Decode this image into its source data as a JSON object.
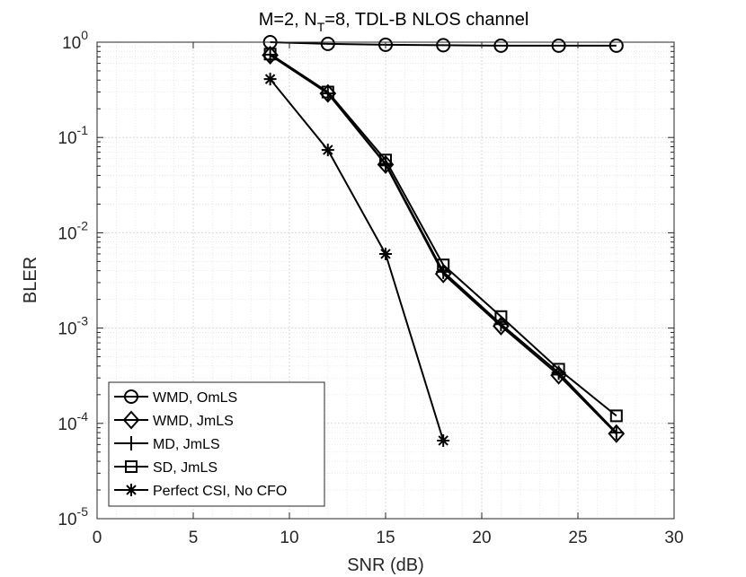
{
  "chart_data": {
    "type": "line",
    "title": "M=2, N_T=8, TDL-B NLOS channel",
    "title_parts": {
      "lead": "M=2, N",
      "sub": "T",
      "trail": "=8, TDL-B NLOS channel"
    },
    "xlabel": "SNR (dB)",
    "ylabel": "BLER",
    "xlim": [
      0,
      30
    ],
    "ylim": [
      1e-05,
      1
    ],
    "yscale": "log",
    "grid": true,
    "minor_grid": true,
    "legend_position": "bottom-left",
    "x_ticks": [
      "0",
      "5",
      "10",
      "15",
      "20",
      "25",
      "30"
    ],
    "y_ticks": [
      {
        "base": "10",
        "exp": "0"
      },
      {
        "base": "10",
        "exp": "-1"
      },
      {
        "base": "10",
        "exp": "-2"
      },
      {
        "base": "10",
        "exp": "-3"
      },
      {
        "base": "10",
        "exp": "-4"
      },
      {
        "base": "10",
        "exp": "-5"
      }
    ],
    "series": [
      {
        "name": "WMD, OmLS",
        "marker": "circle",
        "x": [
          9,
          12,
          15,
          18,
          21,
          24,
          27
        ],
        "y": [
          1.0,
          0.96,
          0.94,
          0.93,
          0.92,
          0.92,
          0.92
        ]
      },
      {
        "name": "WMD, JmLS",
        "marker": "diamond",
        "x": [
          9,
          12,
          15,
          18,
          21,
          24,
          27
        ],
        "y": [
          0.73,
          0.29,
          0.052,
          0.0037,
          0.00105,
          0.00032,
          7.8e-05
        ]
      },
      {
        "name": "MD, JmLS",
        "marker": "plus",
        "x": [
          9,
          12,
          15,
          18,
          21,
          24,
          27
        ],
        "y": [
          0.74,
          0.29,
          0.053,
          0.0039,
          0.0011,
          0.00034,
          8e-05
        ]
      },
      {
        "name": "SD, JmLS",
        "marker": "square",
        "x": [
          9,
          12,
          15,
          18,
          21,
          24,
          27
        ],
        "y": [
          0.75,
          0.3,
          0.058,
          0.0046,
          0.00132,
          0.00037,
          0.00012
        ]
      },
      {
        "name": "Perfect CSI, No CFO",
        "marker": "asterisk",
        "x": [
          9,
          12,
          15,
          18
        ],
        "y": [
          0.41,
          0.074,
          0.006,
          6.6e-05
        ]
      }
    ]
  }
}
